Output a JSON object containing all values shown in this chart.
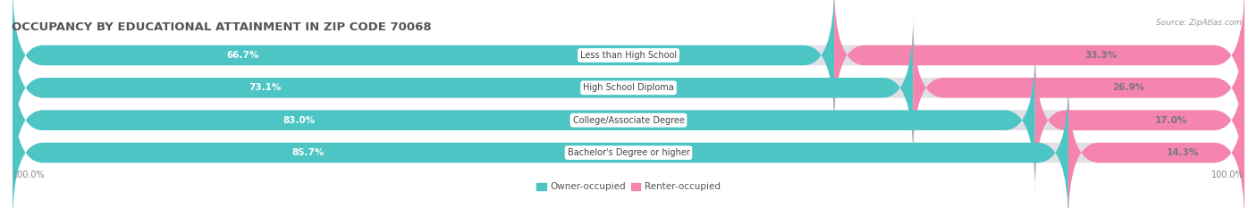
{
  "title": "OCCUPANCY BY EDUCATIONAL ATTAINMENT IN ZIP CODE 70068",
  "source": "Source: ZipAtlas.com",
  "categories": [
    "Less than High School",
    "High School Diploma",
    "College/Associate Degree",
    "Bachelor's Degree or higher"
  ],
  "owner_values": [
    66.7,
    73.1,
    83.0,
    85.7
  ],
  "renter_values": [
    33.3,
    26.9,
    17.0,
    14.3
  ],
  "owner_color": "#4dc5c5",
  "renter_color": "#f585ae",
  "bar_bg_color": "#e0e0e6",
  "bar_height": 0.62,
  "title_fontsize": 9.5,
  "label_fontsize": 7.0,
  "pct_fontsize": 7.5,
  "axis_label_fontsize": 7,
  "legend_fontsize": 7.5,
  "background_color": "#ffffff",
  "source_fontsize": 6.5
}
